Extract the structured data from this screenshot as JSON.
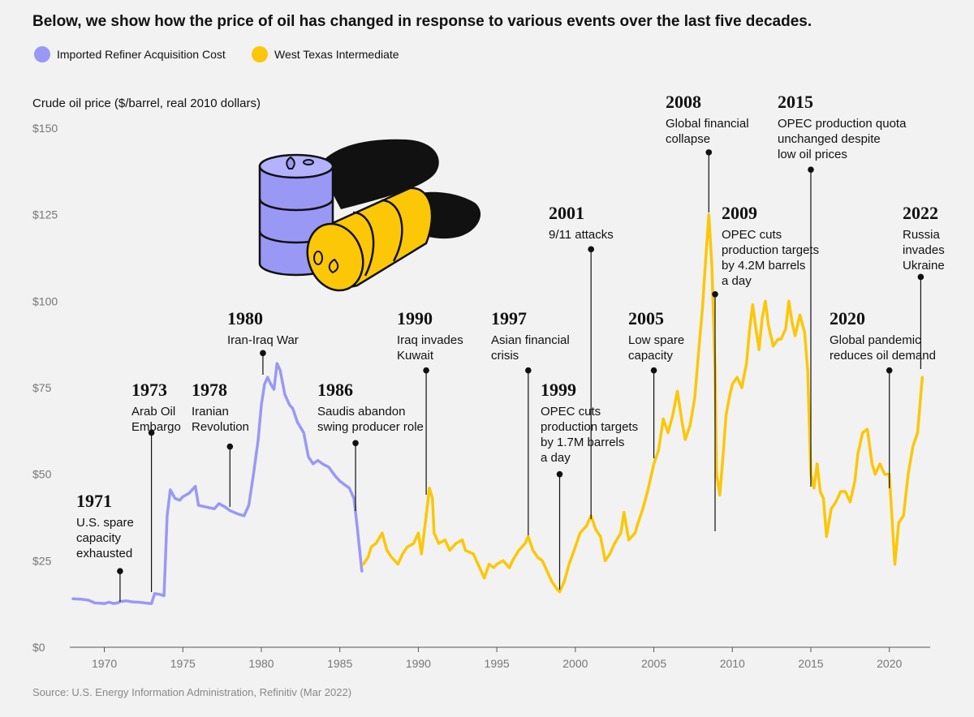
{
  "title": "Below, we show how the price of oil has changed in response to various events over the last five decades.",
  "source": "Source: U.S. Energy Information Administration, Refinitiv (Mar 2022)",
  "colors": {
    "iracc": "#9a98f5",
    "wti": "#fbc707",
    "text": "#111111",
    "axis": "#555555",
    "grid_tick": "#777777"
  },
  "chart_data": {
    "type": "line",
    "ylabel": "Crude oil price ($/barrel, real 2010 dollars)",
    "ylim": [
      0,
      150
    ],
    "xlim": [
      1967.8,
      2022.6
    ],
    "yticks": [
      0,
      25,
      50,
      75,
      100,
      125,
      150
    ],
    "ytick_labels": [
      "$0",
      "$25",
      "$50",
      "$75",
      "$100",
      "$125",
      "$150"
    ],
    "xticks": [
      1970,
      1975,
      1980,
      1985,
      1990,
      1995,
      2000,
      2005,
      2010,
      2015,
      2020
    ],
    "xtick_labels": [
      "1970",
      "1975",
      "1980",
      "1985",
      "1990",
      "1995",
      "2000",
      "2005",
      "2010",
      "2015",
      "2020"
    ],
    "grid": false,
    "legend": "top-left",
    "series": [
      {
        "name": "Imported Refiner Acquisition Cost",
        "color": "#9a98f5",
        "points": [
          [
            1968.0,
            14
          ],
          [
            1968.5,
            13.9
          ],
          [
            1969.0,
            13.6
          ],
          [
            1969.4,
            12.8
          ],
          [
            1969.8,
            12.7
          ],
          [
            1970.0,
            12.6
          ],
          [
            1970.3,
            13
          ],
          [
            1970.6,
            12.6
          ],
          [
            1970.9,
            12.9
          ],
          [
            1971.0,
            13.2
          ],
          [
            1971.4,
            13.4
          ],
          [
            1971.8,
            13.1
          ],
          [
            1972.2,
            13
          ],
          [
            1972.6,
            12.8
          ],
          [
            1973.0,
            12.6
          ],
          [
            1973.2,
            15.5
          ],
          [
            1973.5,
            15.3
          ],
          [
            1973.8,
            14.9
          ],
          [
            1974.0,
            38
          ],
          [
            1974.2,
            45.5
          ],
          [
            1974.5,
            43
          ],
          [
            1974.8,
            42.5
          ],
          [
            1975.0,
            43.5
          ],
          [
            1975.4,
            44.5
          ],
          [
            1975.8,
            46.5
          ],
          [
            1976.0,
            41
          ],
          [
            1976.5,
            40.5
          ],
          [
            1977.0,
            40
          ],
          [
            1977.3,
            41.5
          ],
          [
            1977.7,
            40.5
          ],
          [
            1978.0,
            39.5
          ],
          [
            1978.5,
            38.5
          ],
          [
            1978.9,
            38
          ],
          [
            1979.2,
            41
          ],
          [
            1979.5,
            50
          ],
          [
            1979.8,
            60
          ],
          [
            1980.0,
            70
          ],
          [
            1980.2,
            76
          ],
          [
            1980.4,
            78
          ],
          [
            1980.6,
            76
          ],
          [
            1980.8,
            74.5
          ],
          [
            1981.0,
            82
          ],
          [
            1981.2,
            80
          ],
          [
            1981.5,
            73
          ],
          [
            1981.8,
            70
          ],
          [
            1982.0,
            69
          ],
          [
            1982.3,
            65
          ],
          [
            1982.7,
            62
          ],
          [
            1983.0,
            55
          ],
          [
            1983.3,
            53
          ],
          [
            1983.6,
            54
          ],
          [
            1983.9,
            53
          ],
          [
            1984.3,
            52
          ],
          [
            1984.7,
            49.5
          ],
          [
            1985.0,
            48
          ],
          [
            1985.3,
            47
          ],
          [
            1985.6,
            46
          ],
          [
            1985.9,
            43
          ],
          [
            1986.1,
            35
          ],
          [
            1986.4,
            22
          ]
        ]
      },
      {
        "name": "West Texas Intermediate",
        "color": "#fbc707",
        "points": [
          [
            1986.5,
            24
          ],
          [
            1986.8,
            26
          ],
          [
            1987.0,
            29
          ],
          [
            1987.3,
            30
          ],
          [
            1987.7,
            33
          ],
          [
            1988.0,
            28
          ],
          [
            1988.3,
            26
          ],
          [
            1988.7,
            24
          ],
          [
            1989.0,
            27
          ],
          [
            1989.3,
            29
          ],
          [
            1989.7,
            30
          ],
          [
            1990.0,
            33
          ],
          [
            1990.2,
            27
          ],
          [
            1990.5,
            38
          ],
          [
            1990.7,
            46
          ],
          [
            1990.9,
            43
          ],
          [
            1991.0,
            33
          ],
          [
            1991.3,
            30
          ],
          [
            1991.7,
            31
          ],
          [
            1992.0,
            28
          ],
          [
            1992.4,
            30
          ],
          [
            1992.8,
            31
          ],
          [
            1993.0,
            28
          ],
          [
            1993.5,
            27
          ],
          [
            1993.9,
            23
          ],
          [
            1994.2,
            20
          ],
          [
            1994.5,
            24
          ],
          [
            1994.8,
            23
          ],
          [
            1995.0,
            24
          ],
          [
            1995.4,
            25
          ],
          [
            1995.8,
            23
          ],
          [
            1996.0,
            25
          ],
          [
            1996.4,
            28
          ],
          [
            1996.8,
            30
          ],
          [
            1997.0,
            32
          ],
          [
            1997.3,
            28
          ],
          [
            1997.6,
            26
          ],
          [
            1997.9,
            25
          ],
          [
            1998.2,
            22
          ],
          [
            1998.5,
            19
          ],
          [
            1998.8,
            17
          ],
          [
            1999.0,
            16
          ],
          [
            1999.3,
            19
          ],
          [
            1999.6,
            24
          ],
          [
            2000.0,
            29
          ],
          [
            2000.3,
            33
          ],
          [
            2000.7,
            35
          ],
          [
            2001.0,
            38
          ],
          [
            2001.3,
            34
          ],
          [
            2001.6,
            32
          ],
          [
            2001.9,
            25
          ],
          [
            2002.2,
            27
          ],
          [
            2002.5,
            30
          ],
          [
            2002.9,
            33
          ],
          [
            2003.1,
            39
          ],
          [
            2003.4,
            31
          ],
          [
            2003.8,
            33
          ],
          [
            2004.0,
            36
          ],
          [
            2004.3,
            40
          ],
          [
            2004.6,
            45
          ],
          [
            2004.8,
            49
          ],
          [
            2005.0,
            53
          ],
          [
            2005.3,
            57
          ],
          [
            2005.6,
            66
          ],
          [
            2005.9,
            62
          ],
          [
            2006.2,
            67
          ],
          [
            2006.5,
            74
          ],
          [
            2006.8,
            65
          ],
          [
            2007.0,
            60
          ],
          [
            2007.3,
            64
          ],
          [
            2007.6,
            72
          ],
          [
            2007.9,
            88
          ],
          [
            2008.1,
            98
          ],
          [
            2008.3,
            112
          ],
          [
            2008.5,
            125
          ],
          [
            2008.7,
            110
          ],
          [
            2008.9,
            80
          ],
          [
            2009.0,
            50
          ],
          [
            2009.2,
            44
          ],
          [
            2009.4,
            55
          ],
          [
            2009.6,
            67
          ],
          [
            2009.8,
            72
          ],
          [
            2010.0,
            76
          ],
          [
            2010.3,
            78
          ],
          [
            2010.6,
            75
          ],
          [
            2010.9,
            82
          ],
          [
            2011.1,
            92
          ],
          [
            2011.3,
            99
          ],
          [
            2011.5,
            92
          ],
          [
            2011.7,
            86
          ],
          [
            2011.9,
            95
          ],
          [
            2012.1,
            100
          ],
          [
            2012.3,
            93
          ],
          [
            2012.6,
            87
          ],
          [
            2012.9,
            89
          ],
          [
            2013.1,
            89
          ],
          [
            2013.4,
            92
          ],
          [
            2013.6,
            100
          ],
          [
            2013.8,
            94
          ],
          [
            2014.0,
            90
          ],
          [
            2014.3,
            96
          ],
          [
            2014.6,
            91
          ],
          [
            2014.8,
            80
          ],
          [
            2015.0,
            50
          ],
          [
            2015.2,
            46
          ],
          [
            2015.4,
            53
          ],
          [
            2015.6,
            45
          ],
          [
            2015.8,
            43
          ],
          [
            2016.0,
            32
          ],
          [
            2016.3,
            40
          ],
          [
            2016.6,
            42
          ],
          [
            2016.9,
            45
          ],
          [
            2017.2,
            45
          ],
          [
            2017.5,
            42
          ],
          [
            2017.8,
            48
          ],
          [
            2018.0,
            56
          ],
          [
            2018.3,
            62
          ],
          [
            2018.6,
            63
          ],
          [
            2018.9,
            53
          ],
          [
            2019.1,
            50
          ],
          [
            2019.4,
            53
          ],
          [
            2019.7,
            50
          ],
          [
            2020.0,
            50
          ],
          [
            2020.2,
            35
          ],
          [
            2020.35,
            24
          ],
          [
            2020.6,
            36
          ],
          [
            2020.9,
            38
          ],
          [
            2021.2,
            50
          ],
          [
            2021.5,
            58
          ],
          [
            2021.8,
            62
          ],
          [
            2022.1,
            78
          ]
        ]
      }
    ],
    "annotations": [
      {
        "year": "1971",
        "lines": [
          "U.S. spare",
          "capacity",
          "exhausted"
        ],
        "x": 1971.0,
        "y": 22
      },
      {
        "year": "1973",
        "lines": [
          "Arab Oil",
          "Embargo"
        ],
        "x": 1973.0,
        "y": 62
      },
      {
        "year": "1978",
        "lines": [
          "Iranian",
          "Revolution"
        ],
        "x": 1978.0,
        "y": 58
      },
      {
        "year": "1980",
        "lines": [
          "Iran-Iraq War"
        ],
        "x": 1980.1,
        "y": 85
      },
      {
        "year": "1986",
        "lines": [
          "Saudis abandon",
          "swing producer role"
        ],
        "x": 1986.0,
        "y": 59
      },
      {
        "year": "1990",
        "lines": [
          "Iraq invades",
          "Kuwait"
        ],
        "x": 1990.5,
        "y": 80
      },
      {
        "year": "1997",
        "lines": [
          "Asian financial",
          "crisis"
        ],
        "x": 1997.0,
        "y": 80
      },
      {
        "year": "1999",
        "lines": [
          "OPEC cuts",
          "production targets",
          "by 1.7M barrels",
          "a day"
        ],
        "x": 1999.0,
        "y": 50
      },
      {
        "year": "2001",
        "lines": [
          "9/11 attacks"
        ],
        "x": 2001.0,
        "y": 115
      },
      {
        "year": "2005",
        "lines": [
          "Low spare",
          "capacity"
        ],
        "x": 2005.0,
        "y": 80
      },
      {
        "year": "2008",
        "lines": [
          "Global financial",
          "collapse"
        ],
        "x": 2008.5,
        "y": 143
      },
      {
        "year": "2009",
        "lines": [
          "OPEC cuts",
          "production targets",
          "by 4.2M barrels",
          "a day"
        ],
        "x": 2008.9,
        "y": 102
      },
      {
        "year": "2015",
        "lines": [
          "OPEC production quota",
          "unchanged despite",
          "low oil prices"
        ],
        "x": 2015.0,
        "y": 138
      },
      {
        "year": "2020",
        "lines": [
          "Global pandemic",
          "reduces oil demand"
        ],
        "x": 2020.0,
        "y": 80
      },
      {
        "year": "2022",
        "lines": [
          "Russia",
          "invades",
          "Ukraine"
        ],
        "x": 2022.0,
        "y": 107
      }
    ]
  }
}
